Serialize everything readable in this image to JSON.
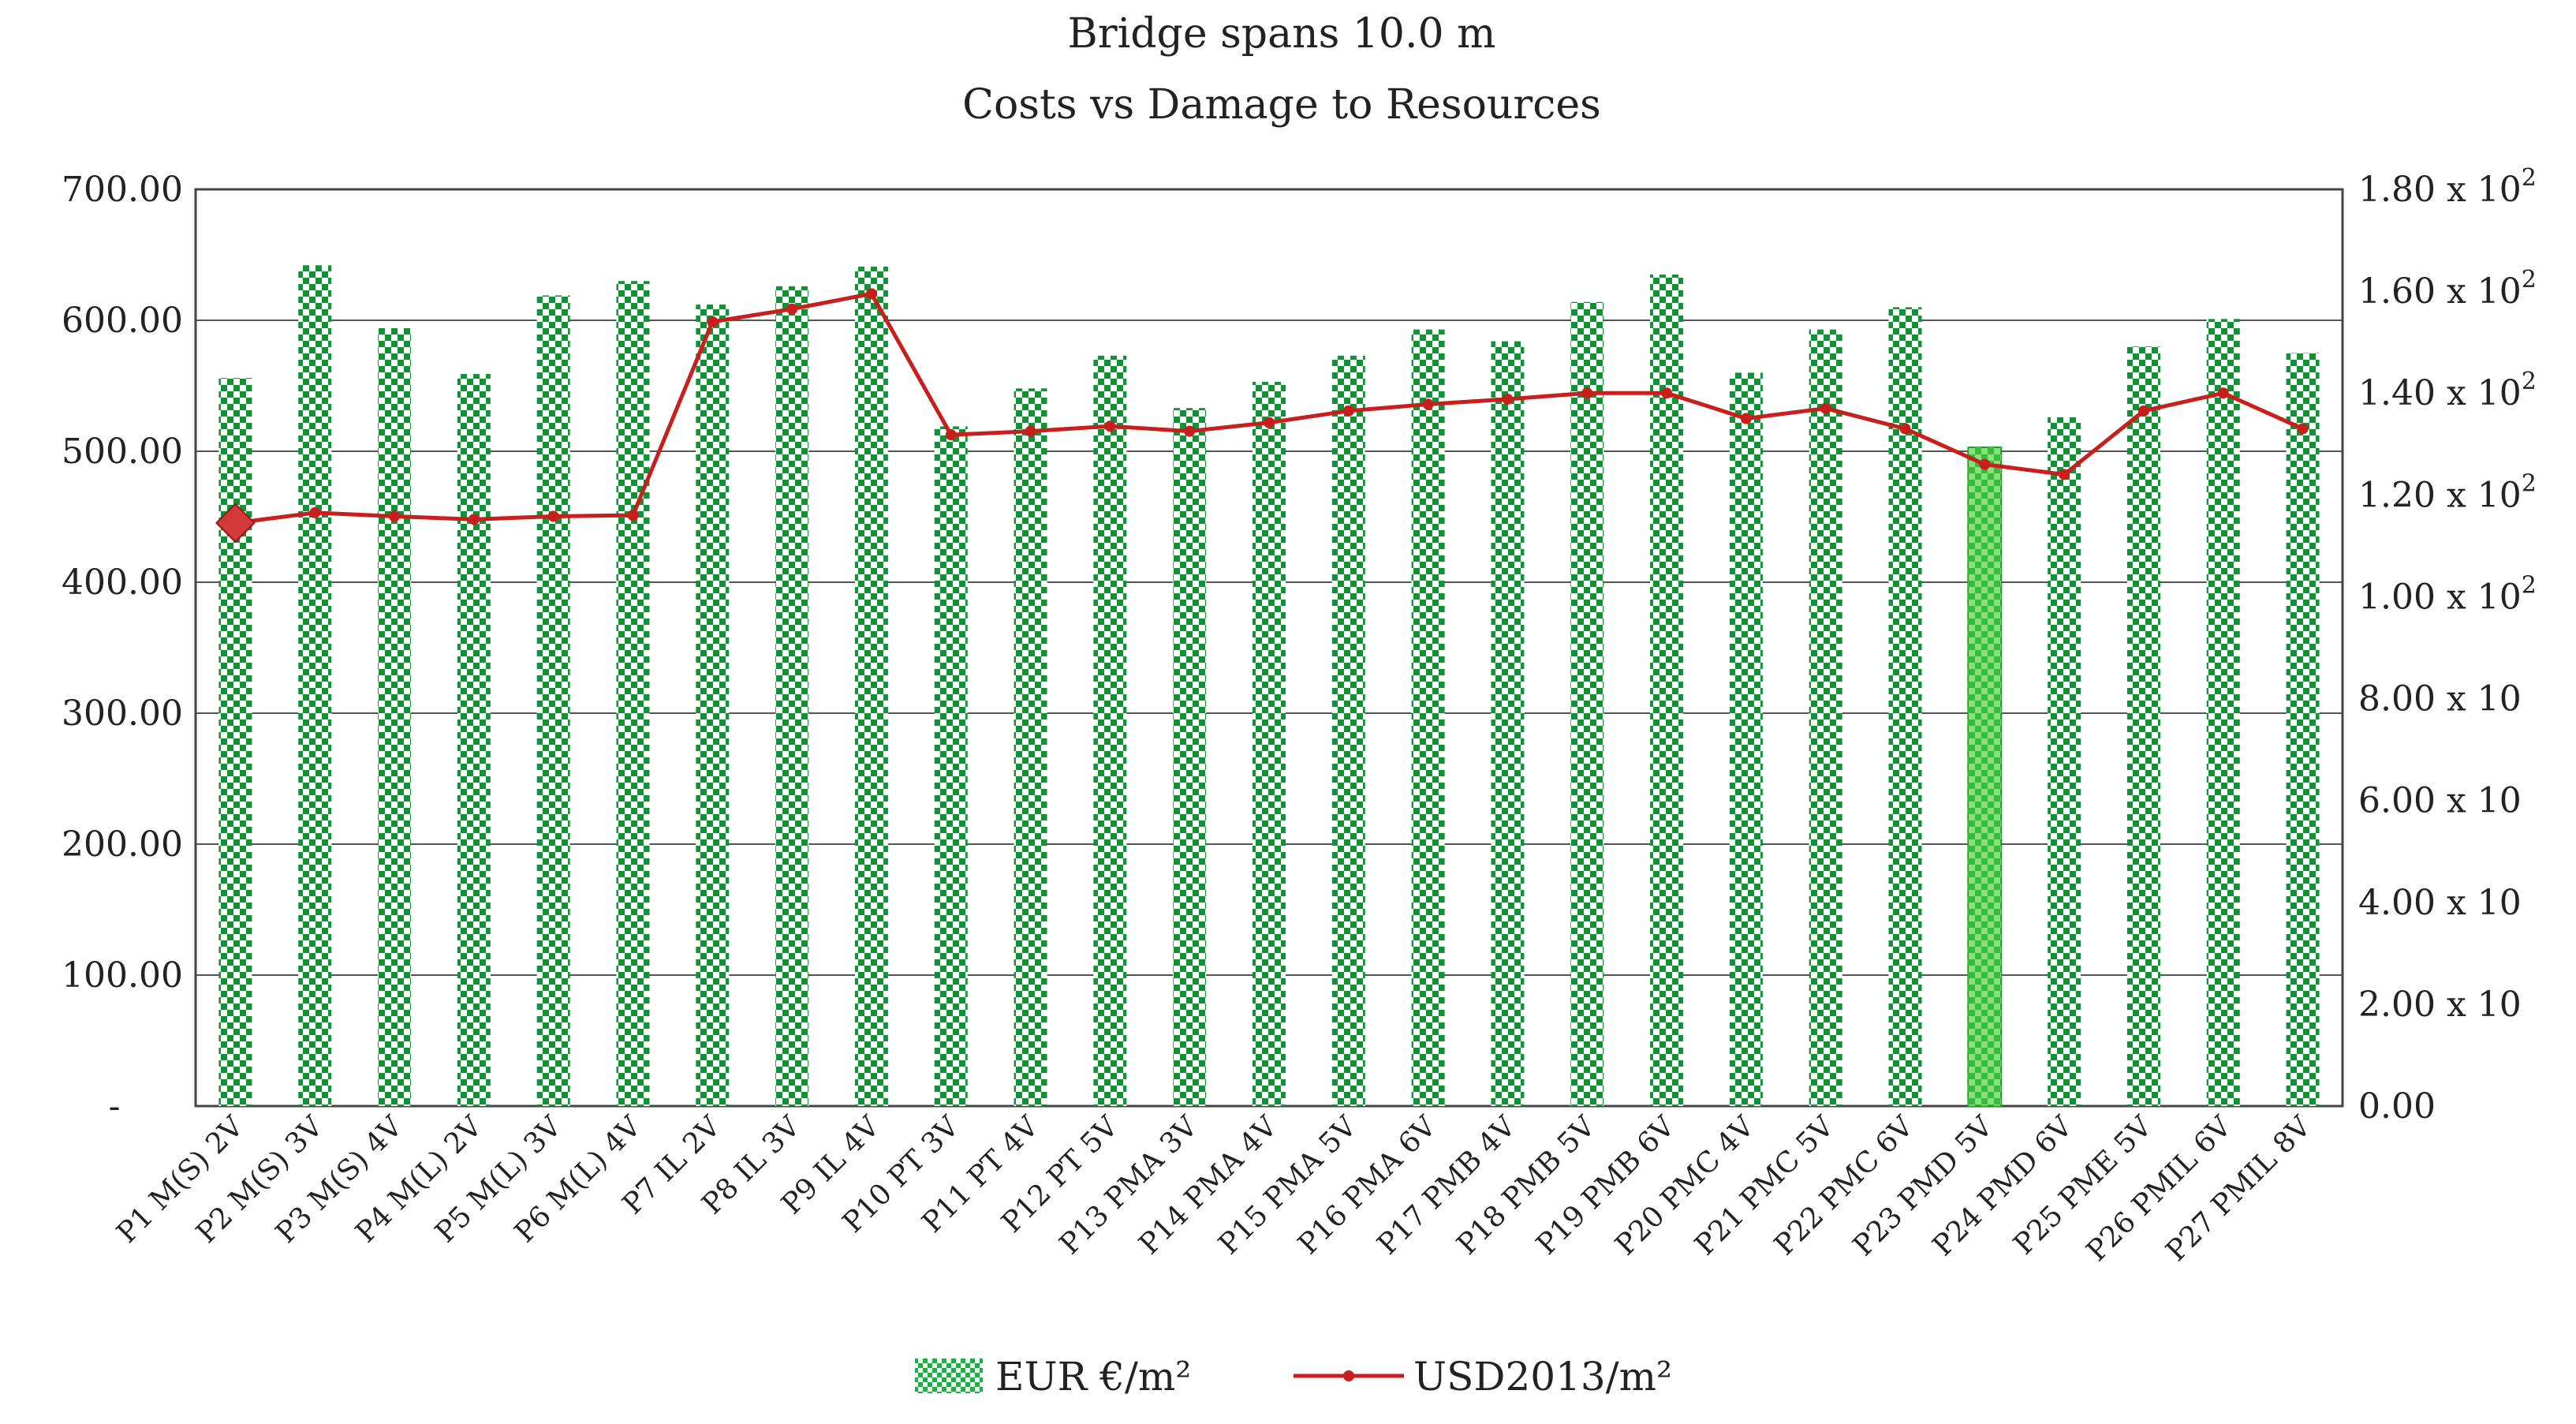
{
  "chart_data": {
    "type": "bar",
    "title": "Bridge spans 10.0 m",
    "subtitle": "Costs vs Damage to Resources",
    "categories": [
      "P1 M(S) 2V",
      "P2 M(S) 3V",
      "P3 M(S) 4V",
      "P4 M(L) 2V",
      "P5 M(L) 3V",
      "P6 M(L) 4V",
      "P7 IL 2V",
      "P8 IL 3V",
      "P9 IL 4V",
      "P10 PT 3V",
      "P11 PT 4V",
      "P12 PT 5V",
      "P13 PMA 3V",
      "P14 PMA 4V",
      "P15 PMA 5V",
      "P16 PMA 6V",
      "P17 PMB 4V",
      "P18 PMB 5V",
      "P19 PMB 6V",
      "P20 PMC 4V",
      "P21 PMC 5V",
      "P22 PMC 6V",
      "P23 PMD 5V",
      "P24 PMD 6V",
      "P25 PME 5V",
      "P26 PMIL 6V",
      "P27 PMIL 8V"
    ],
    "series": [
      {
        "name": "EUR €/m²",
        "type": "bar",
        "axis": "left",
        "color": "#1a9a3a",
        "values": [
          556,
          642,
          594,
          559,
          619,
          630,
          612,
          626,
          641,
          519,
          548,
          573,
          533,
          553,
          573,
          593,
          584,
          614,
          635,
          560,
          593,
          610,
          503,
          526,
          580,
          601,
          575
        ]
      },
      {
        "name": "USD2013/m²",
        "type": "line",
        "axis": "right",
        "color": "#c81e1e",
        "values": [
          114.5,
          116.5,
          115.8,
          115.2,
          115.8,
          116,
          154,
          156.5,
          159.5,
          131.8,
          132.5,
          133.5,
          132.5,
          134.2,
          136.5,
          137.8,
          138.8,
          140,
          140,
          135,
          137,
          133,
          126,
          124,
          136.5,
          140,
          133
        ]
      }
    ],
    "highlight": {
      "bar_index": 22,
      "line_marker_index": 0
    },
    "y_left": {
      "ylim": [
        0,
        700
      ],
      "ticks": [
        0,
        100,
        200,
        300,
        400,
        500,
        600,
        700
      ],
      "tick_labels": [
        "-",
        "100.00",
        "200.00",
        "300.00",
        "400.00",
        "500.00",
        "600.00",
        "700.00"
      ]
    },
    "y_right": {
      "ylim": [
        0,
        180
      ],
      "ticks": [
        0,
        20,
        40,
        60,
        80,
        100,
        120,
        140,
        160,
        180
      ],
      "tick_labels": [
        "0.00",
        "2.00 x 10",
        "4.00 x 10",
        "6.00 x 10",
        "8.00 x 10",
        "1.00 x 10",
        "1.20 x 10",
        "1.40 x 10",
        "1.60 x 10",
        "1.80 x 10"
      ],
      "tick_exponents": [
        "",
        "",
        "",
        "",
        "",
        "2",
        "2",
        "2",
        "2",
        "2"
      ]
    },
    "grid": true,
    "legend": {
      "position": "bottom-center",
      "entries": [
        "EUR €/m²",
        "USD2013/m²"
      ]
    }
  }
}
